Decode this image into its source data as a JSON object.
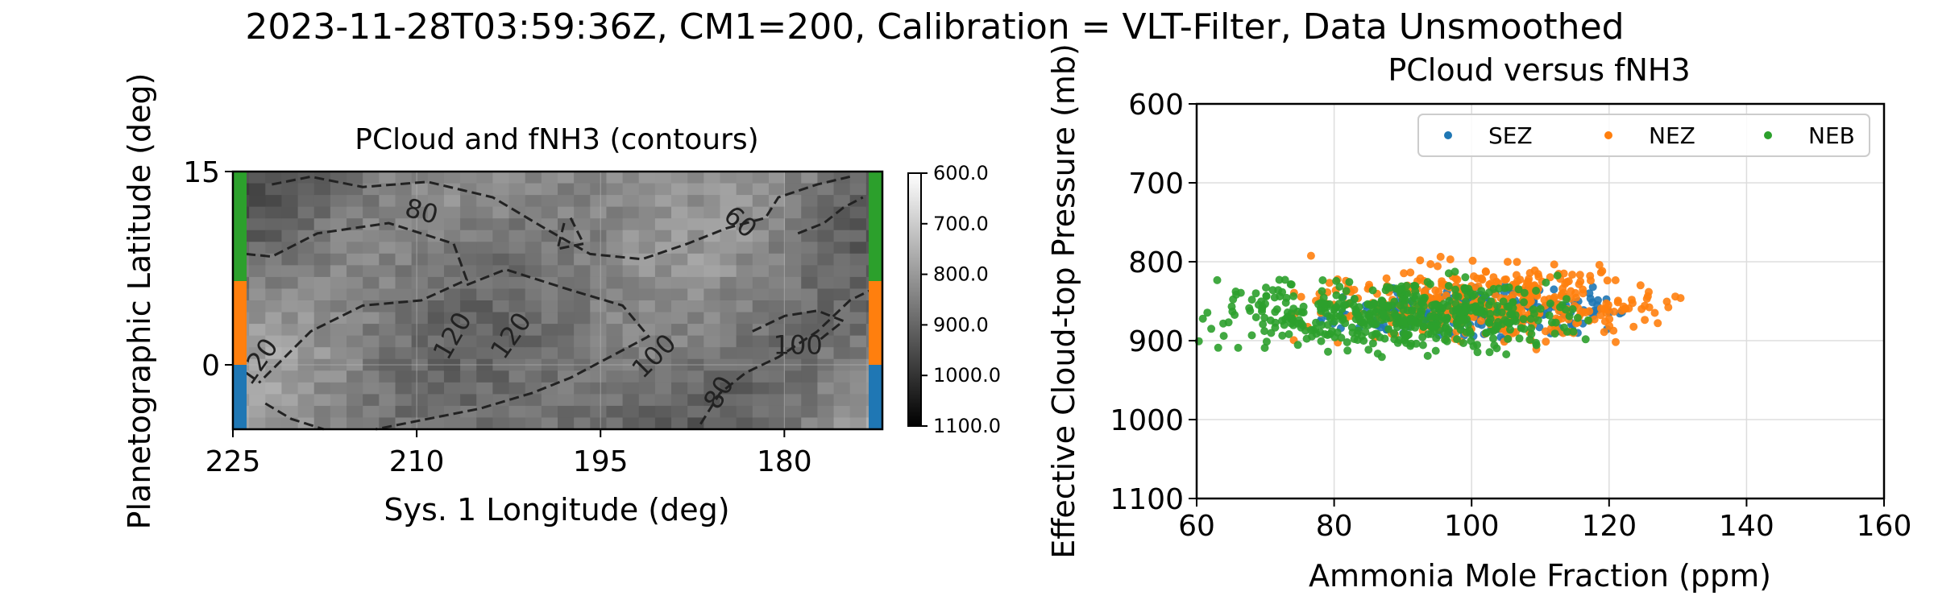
{
  "figure": {
    "title": "2023-11-28T03:59:36Z, CM1=200, Calibration = VLT-Filter, Data Unsmoothed"
  },
  "chart_data": [
    {
      "type": "heatmap",
      "title": "PCloud and fNH3 (contours)",
      "xlabel": "Sys. 1 Longitude (deg)",
      "ylabel": "Planetographic Latitude (deg)",
      "xlim": [
        225,
        172
      ],
      "ylim": [
        -5,
        15
      ],
      "xticks": [
        225,
        210,
        195,
        180
      ],
      "yticks": [
        0,
        15
      ],
      "colorbar": {
        "ticks": [
          "600.0",
          "700.0",
          "800.0",
          "900.0",
          "1000.0",
          "1100.0"
        ],
        "range": [
          600,
          1100
        ],
        "colormap": "gray"
      },
      "contour_labels": [
        "80",
        "60",
        "120",
        "120",
        "120",
        "100",
        "100",
        "80"
      ],
      "grid": true,
      "zone_bands": [
        {
          "zone": "NEB",
          "lat_range": [
            6.5,
            15
          ],
          "color": "#2ca02c"
        },
        {
          "zone": "NEZ",
          "lat_range": [
            0,
            6.5
          ],
          "color": "#ff7f0e"
        },
        {
          "zone": "SEZ",
          "lat_range": [
            -5,
            0
          ],
          "color": "#1f77b4"
        }
      ]
    },
    {
      "type": "scatter",
      "title": "PCloud versus fNH3",
      "xlabel": "Ammonia Mole Fraction (ppm)",
      "ylabel": "Effective Cloud-top Pressure (mb)",
      "xlim": [
        60,
        160
      ],
      "ylim": [
        1100,
        600
      ],
      "xticks": [
        60,
        80,
        100,
        120,
        140,
        160
      ],
      "yticks": [
        600,
        700,
        800,
        900,
        1000,
        1100
      ],
      "grid": true,
      "legend": "top-right",
      "series": [
        {
          "name": "SEZ",
          "color": "#1f77b4",
          "x_range": [
            76,
            124
          ],
          "y_range": [
            820,
            905
          ],
          "approx_points": 250
        },
        {
          "name": "NEZ",
          "color": "#ff7f0e",
          "x_range": [
            73,
            132
          ],
          "y_range": [
            790,
            915
          ],
          "approx_points": 400
        },
        {
          "name": "NEB",
          "color": "#2ca02c",
          "x_range": [
            60,
            120
          ],
          "y_range": [
            810,
            925
          ],
          "approx_points": 500
        }
      ]
    }
  ]
}
